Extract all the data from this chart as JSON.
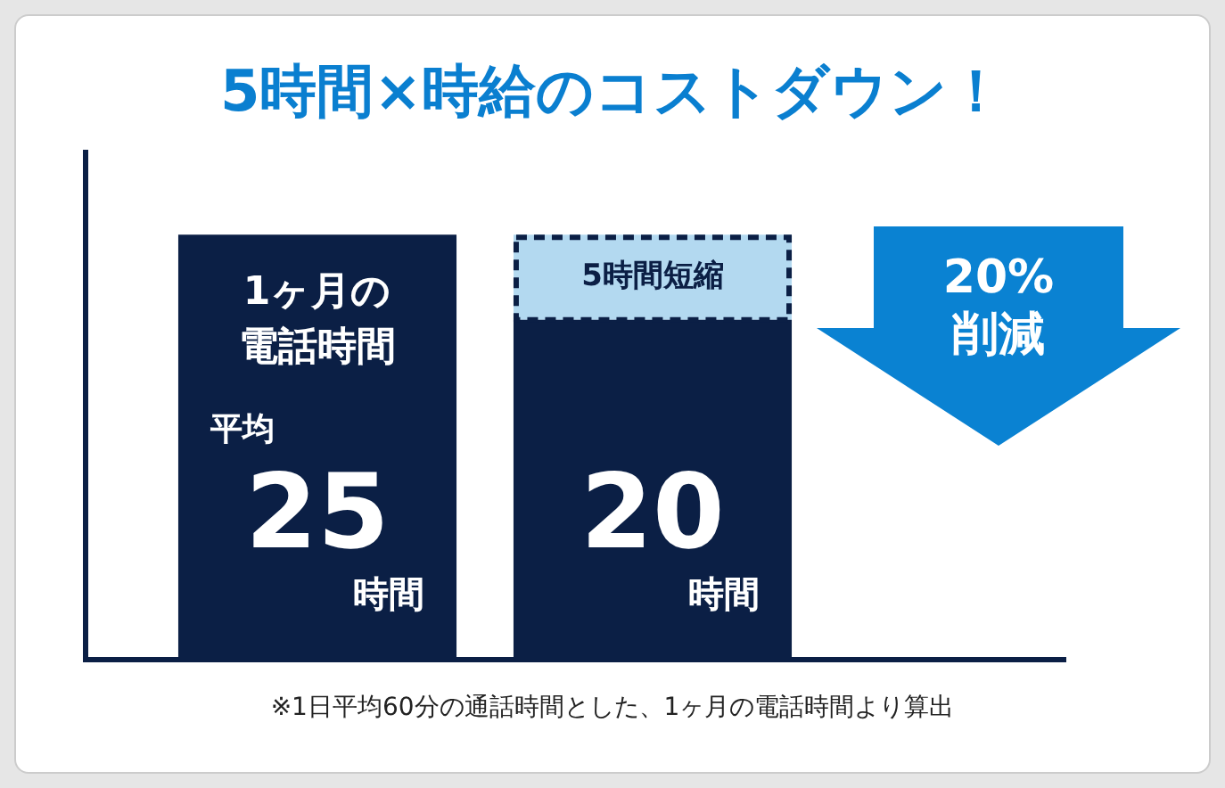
{
  "chart_data": {
    "type": "bar",
    "title": "5時間×時給のコストダウン！",
    "categories": [
      null,
      null
    ],
    "stacked": true,
    "series": [
      {
        "color": "#0b1f45",
        "values": [
          25,
          20
        ],
        "value_labels": [
          "25",
          "20"
        ]
      },
      {
        "name": "5時間短縮",
        "color": "#b3d9f0",
        "values": [
          null,
          5
        ],
        "line_style": "dashed"
      }
    ],
    "annotations": [
      "1ヶ月の電話時間",
      "平均",
      "時間",
      "時間",
      "20%\n削減",
      "※1日平均60分の通話時間とした、1ヶ月の電話時間より算出"
    ],
    "tick_labels": false,
    "grid": false,
    "legend": false
  }
}
